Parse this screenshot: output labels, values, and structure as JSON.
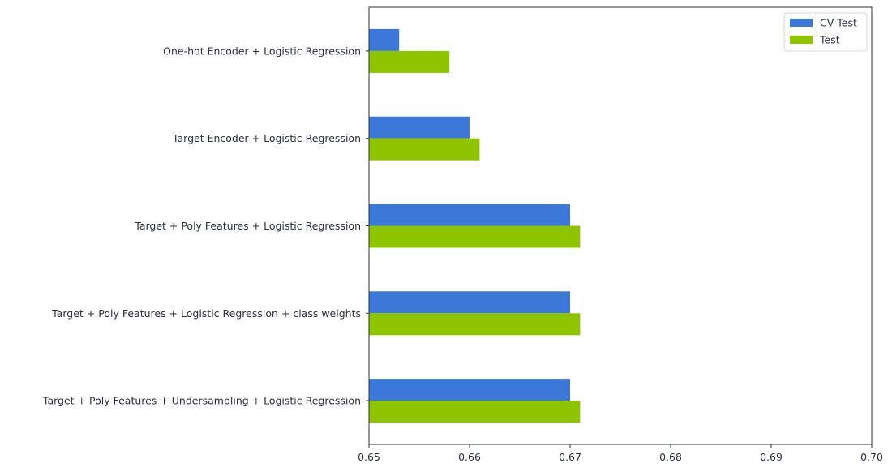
{
  "chart_data": {
    "type": "bar",
    "orientation": "horizontal",
    "categories": [
      "One-hot Encoder + Logistic Regression",
      "Target Encoder + Logistic Regression",
      "Target + Poly Features + Logistic Regression",
      "Target + Poly Features + Logistic Regression + class weights",
      "Target + Poly Features + Undersampling + Logistic Regression"
    ],
    "series": [
      {
        "name": "CV Test",
        "color": "#3c78d8",
        "values": [
          0.653,
          0.66,
          0.67,
          0.67,
          0.67
        ]
      },
      {
        "name": "Test",
        "color": "#8fc400",
        "values": [
          0.658,
          0.661,
          0.671,
          0.671,
          0.671
        ]
      }
    ],
    "xlim": [
      0.65,
      0.7
    ],
    "xticks": [
      "0.65",
      "0.66",
      "0.67",
      "0.68",
      "0.69",
      "0.70"
    ],
    "title": "",
    "xlabel": "",
    "ylabel": "",
    "grid": false,
    "legend_position": "top-right"
  }
}
